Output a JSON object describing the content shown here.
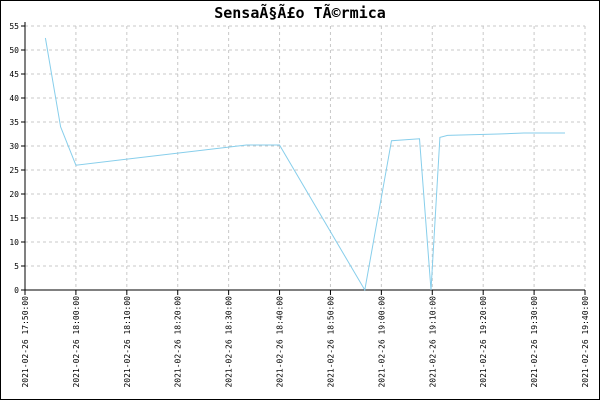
{
  "chart_data": {
    "type": "line",
    "title": "SensaÃ§Ã£o TÃ©rmica",
    "xlabel": "",
    "ylabel": "",
    "ylim": [
      0,
      55
    ],
    "y_ticks": [
      0,
      5,
      10,
      15,
      20,
      25,
      30,
      35,
      40,
      45,
      50,
      55
    ],
    "x_ticks": [
      "2021-02-26 17:50:00",
      "2021-02-26 18:00:00",
      "2021-02-26 18:10:00",
      "2021-02-26 18:20:00",
      "2021-02-26 18:30:00",
      "2021-02-26 18:40:00",
      "2021-02-26 18:50:00",
      "2021-02-26 19:00:00",
      "2021-02-26 19:10:00",
      "2021-02-26 19:20:00",
      "2021-02-26 19:30:00",
      "2021-02-26 19:40:00"
    ],
    "xlim": [
      "2021-02-26 17:50:00",
      "2021-02-26 19:40:00"
    ],
    "grid": true,
    "series_color": "#87ceeb",
    "series": [
      {
        "points": [
          {
            "x": "2021-02-26 17:54:00",
            "y": 52.5
          },
          {
            "x": "2021-02-26 17:57:00",
            "y": 34.0
          },
          {
            "x": "2021-02-26 18:00:00",
            "y": 26.0
          },
          {
            "x": "2021-02-26 18:33:30",
            "y": 30.2
          },
          {
            "x": "2021-02-26 18:40:00",
            "y": 30.2
          },
          {
            "x": "2021-02-26 18:56:45",
            "y": 0.0
          },
          {
            "x": "2021-02-26 19:02:00",
            "y": 31.1
          },
          {
            "x": "2021-02-26 19:07:30",
            "y": 31.5
          },
          {
            "x": "2021-02-26 19:09:45",
            "y": 0.0
          },
          {
            "x": "2021-02-26 19:11:30",
            "y": 31.8
          },
          {
            "x": "2021-02-26 19:13:00",
            "y": 32.2
          },
          {
            "x": "2021-02-26 19:23:00",
            "y": 32.5
          },
          {
            "x": "2021-02-26 19:28:00",
            "y": 32.7
          },
          {
            "x": "2021-02-26 19:45:00",
            "y": 32.7
          }
        ]
      }
    ]
  }
}
